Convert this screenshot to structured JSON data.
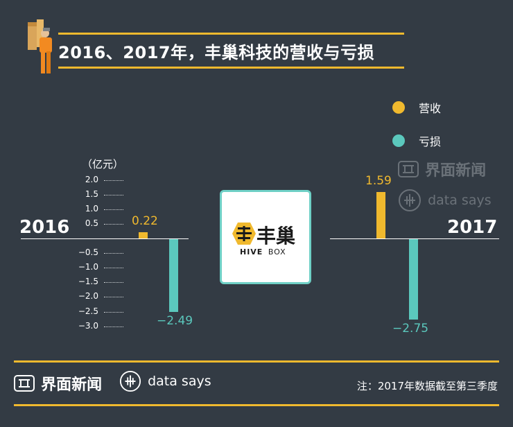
{
  "title": "2016、2017年，丰巢科技的营收与亏损",
  "colors": {
    "background": "#333b44",
    "revenue": "#f0b92e",
    "loss": "#5bc8bd",
    "accent_line": "#f0b92e"
  },
  "legend": [
    {
      "label": "营收",
      "color": "#f0b92e"
    },
    {
      "label": "亏损",
      "color": "#5bc8bd"
    }
  ],
  "unit_label": "（亿元）",
  "chart_data": {
    "type": "bar",
    "categories": [
      "2016",
      "2017"
    ],
    "series": [
      {
        "name": "营收",
        "values": [
          0.22,
          1.59
        ]
      },
      {
        "name": "亏损",
        "values": [
          -2.49,
          -2.75
        ]
      }
    ],
    "data_labels": {
      "revenue": [
        "0.22",
        "1.59"
      ],
      "loss": [
        "−2.49",
        "−2.75"
      ]
    },
    "ylabel": "（亿元）",
    "ylim": [
      -3.0,
      2.0
    ],
    "y_ticks": [
      "2.0",
      "1.5",
      "1.0",
      "0.5",
      "−0.5",
      "−1.0",
      "−1.5",
      "−2.0",
      "−2.5",
      "−3.0"
    ],
    "legend_position": "top-right"
  },
  "center_logo": {
    "brand_cn": "丰巢",
    "brand_en_a": "HIVE",
    "brand_en_b": "BOX"
  },
  "watermark": {
    "brand": "界面新闻",
    "sub": "data says"
  },
  "footer": {
    "brand": "界面新闻",
    "sub": "data says",
    "note": "注：2017年数据截至第三季度"
  }
}
